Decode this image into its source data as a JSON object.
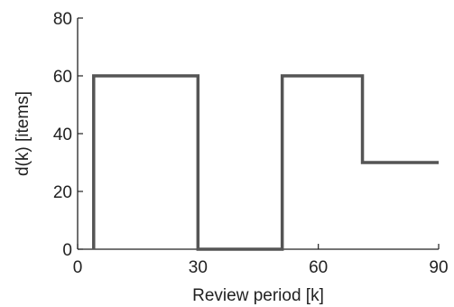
{
  "chart_data": {
    "type": "line",
    "title": "",
    "xlabel": "Review period [k]",
    "ylabel": "d(k) [items]",
    "xlim": [
      0,
      90
    ],
    "ylim": [
      0,
      80
    ],
    "xticks": [
      "0",
      "30",
      "60",
      "90"
    ],
    "yticks": [
      "0",
      "20",
      "40",
      "60",
      "80"
    ],
    "grid": false,
    "line_color": "#555555",
    "series": [
      {
        "x": [
          4,
          4,
          30,
          30,
          51,
          51,
          71,
          71,
          90
        ],
        "y": [
          0,
          60,
          60,
          0,
          0,
          60,
          60,
          30,
          30
        ]
      }
    ]
  }
}
